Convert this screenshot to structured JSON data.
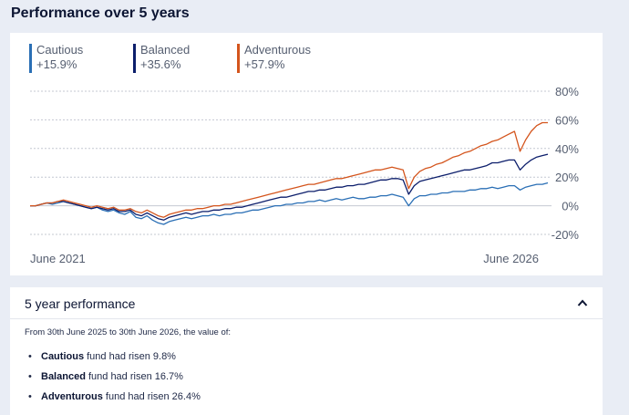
{
  "page": {
    "title": "Performance over 5 years"
  },
  "chart_data": {
    "type": "line",
    "x_start_label": "June 2021",
    "x_end_label": "June 2026",
    "y_ticks": [
      "80%",
      "60%",
      "40%",
      "20%",
      "0%",
      "-20%"
    ],
    "ylim": [
      -20,
      80
    ],
    "grid": true,
    "legend_position": "top-left",
    "series": [
      {
        "name": "Cautious",
        "summary": "+15.9%",
        "color": "#2a6fb5",
        "values": [
          0,
          0,
          1,
          2,
          1,
          2,
          3,
          2,
          1,
          0,
          -1,
          -2,
          -1,
          -3,
          -4,
          -3,
          -5,
          -6,
          -4,
          -8,
          -9,
          -7,
          -10,
          -12,
          -13,
          -11,
          -10,
          -9,
          -8,
          -9,
          -8,
          -7,
          -7,
          -6,
          -7,
          -6,
          -6,
          -5,
          -5,
          -4,
          -3,
          -3,
          -2,
          -1,
          0,
          0,
          1,
          1,
          2,
          2,
          3,
          3,
          4,
          3,
          4,
          5,
          4,
          5,
          6,
          5,
          5,
          6,
          6,
          7,
          7,
          8,
          7,
          6,
          0,
          5,
          7,
          7,
          8,
          8,
          9,
          9,
          10,
          10,
          10,
          11,
          11,
          12,
          12,
          13,
          12,
          13,
          14,
          14,
          11,
          13,
          14,
          15,
          15,
          16
        ]
      },
      {
        "name": "Balanced",
        "summary": "+35.6%",
        "color": "#0c1e6b",
        "values": [
          0,
          0,
          1,
          2,
          2,
          3,
          3,
          2,
          1,
          0,
          -1,
          -2,
          -1,
          -2,
          -3,
          -2,
          -4,
          -4,
          -3,
          -6,
          -7,
          -5,
          -7,
          -9,
          -10,
          -8,
          -7,
          -6,
          -5,
          -6,
          -5,
          -4,
          -4,
          -3,
          -3,
          -2,
          -2,
          -1,
          -1,
          0,
          1,
          2,
          3,
          4,
          5,
          6,
          6,
          7,
          8,
          9,
          10,
          10,
          11,
          11,
          12,
          13,
          13,
          14,
          14,
          15,
          15,
          16,
          17,
          18,
          18,
          19,
          19,
          18,
          8,
          14,
          17,
          18,
          19,
          20,
          21,
          22,
          23,
          24,
          25,
          25,
          26,
          27,
          28,
          30,
          30,
          31,
          32,
          32,
          25,
          29,
          32,
          34,
          35,
          36
        ]
      },
      {
        "name": "Adventurous",
        "summary": "+57.9%",
        "color": "#d4551d",
        "values": [
          0,
          0,
          1,
          2,
          2,
          3,
          4,
          3,
          2,
          1,
          0,
          -1,
          0,
          -1,
          -2,
          -1,
          -3,
          -3,
          -2,
          -4,
          -5,
          -3,
          -5,
          -7,
          -8,
          -6,
          -5,
          -4,
          -3,
          -3,
          -2,
          -2,
          -1,
          0,
          0,
          1,
          1,
          2,
          3,
          4,
          5,
          6,
          7,
          8,
          9,
          10,
          11,
          12,
          13,
          14,
          15,
          15,
          16,
          17,
          18,
          19,
          19,
          20,
          21,
          22,
          23,
          24,
          25,
          25,
          26,
          27,
          26,
          25,
          12,
          20,
          24,
          26,
          27,
          29,
          30,
          32,
          34,
          35,
          37,
          38,
          40,
          42,
          43,
          45,
          46,
          48,
          50,
          52,
          38,
          46,
          52,
          56,
          58,
          58
        ]
      }
    ]
  },
  "performance": {
    "title": "5 year performance",
    "intro": "From 30th June 2025 to 30th June 2026, the value of:",
    "items": [
      {
        "fund": "Cautious",
        "text": " fund had risen 9.8%"
      },
      {
        "fund": "Balanced",
        "text": " fund had risen 16.7%"
      },
      {
        "fund": "Adventurous",
        "text": " fund had risen 26.4%"
      }
    ]
  }
}
